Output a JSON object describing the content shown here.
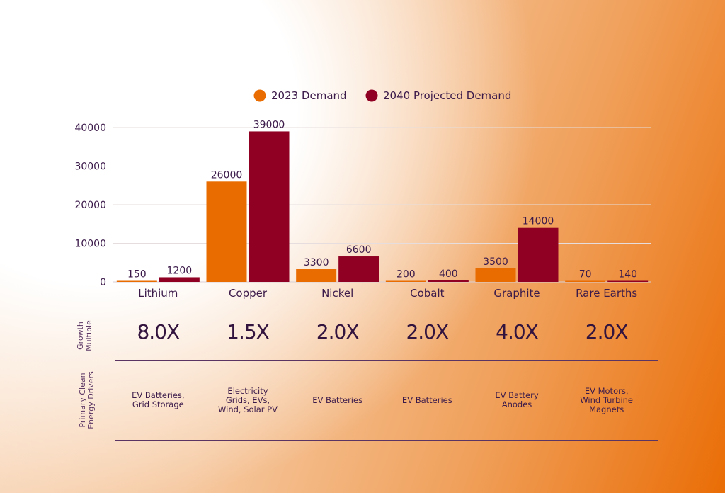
{
  "chart_data": {
    "type": "bar",
    "title": "",
    "xlabel": "",
    "ylabel": "",
    "ylim": [
      0,
      40000
    ],
    "yticks": [
      "0",
      "10000",
      "20000",
      "30000",
      "40000"
    ],
    "ytick_values": [
      0,
      10000,
      20000,
      30000,
      40000
    ],
    "grid": true,
    "legend_position": "top-center",
    "categories": [
      "Lithium",
      "Copper",
      "Nickel",
      "Cobalt",
      "Graphite",
      "Rare Earths"
    ],
    "series": [
      {
        "name": "2023 Demand",
        "color": "#e96c00",
        "values": [
          150,
          26000,
          3300,
          200,
          3500,
          70
        ],
        "labels": [
          "150",
          "26000",
          "3300",
          "200",
          "3500",
          "70"
        ]
      },
      {
        "name": "2040 Projected Demand",
        "color": "#8f0022",
        "values": [
          1200,
          39000,
          6600,
          400,
          14000,
          140
        ],
        "labels": [
          "1200",
          "39000",
          "6600",
          "400",
          "14000",
          "140"
        ]
      }
    ]
  },
  "table": {
    "growth_label": "Growth Multiple",
    "growth_label_lines": [
      "Growth",
      "Multiple"
    ],
    "growth": [
      "8.0X",
      "1.5X",
      "2.0X",
      "2.0X",
      "4.0X",
      "2.0X"
    ],
    "drivers_label": "Primary Clean Energy Drivers",
    "drivers_label_lines": [
      "Primary Clean",
      "Energy Drivers"
    ],
    "drivers": [
      "EV Batteries,\nGrid Storage",
      "Electricity\nGrids, EVs,\nWind, Solar PV",
      "EV Batteries",
      "EV Batteries",
      "EV Battery\nAnodes",
      "EV Motors,\nWind Turbine\nMagnets"
    ]
  }
}
